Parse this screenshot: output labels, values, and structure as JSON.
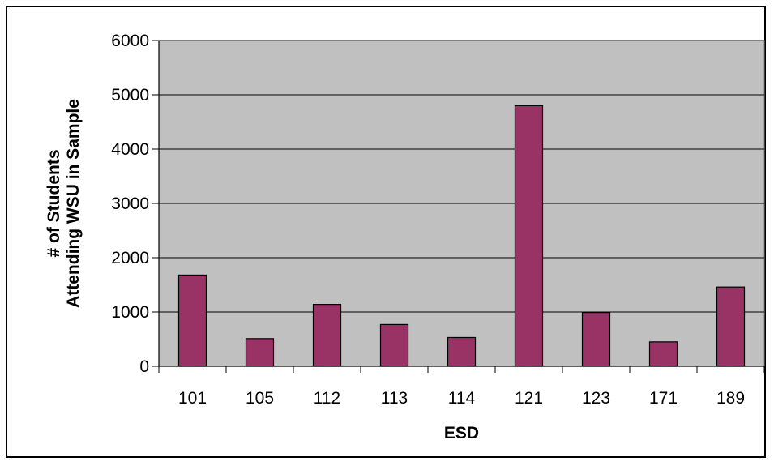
{
  "chart_data": {
    "type": "bar",
    "title": "",
    "xlabel": "ESD",
    "ylabel_line1": "# of Students",
    "ylabel_line2": "Attending WSU in Sample",
    "categories": [
      "101",
      "105",
      "112",
      "113",
      "114",
      "121",
      "123",
      "171",
      "189"
    ],
    "values": [
      1680,
      510,
      1140,
      770,
      530,
      4800,
      990,
      450,
      1460
    ],
    "ylim": [
      0,
      6000
    ],
    "yticks": [
      0,
      1000,
      2000,
      3000,
      4000,
      5000,
      6000
    ],
    "ytick_labels": [
      "0",
      "1000",
      "2000",
      "3000",
      "4000",
      "5000",
      "6000"
    ],
    "grid": "horizontal",
    "legend": "none",
    "colors": {
      "bar_fill": "#993366",
      "plot_background": "#c0c0c0",
      "gridline": "#000000"
    }
  }
}
